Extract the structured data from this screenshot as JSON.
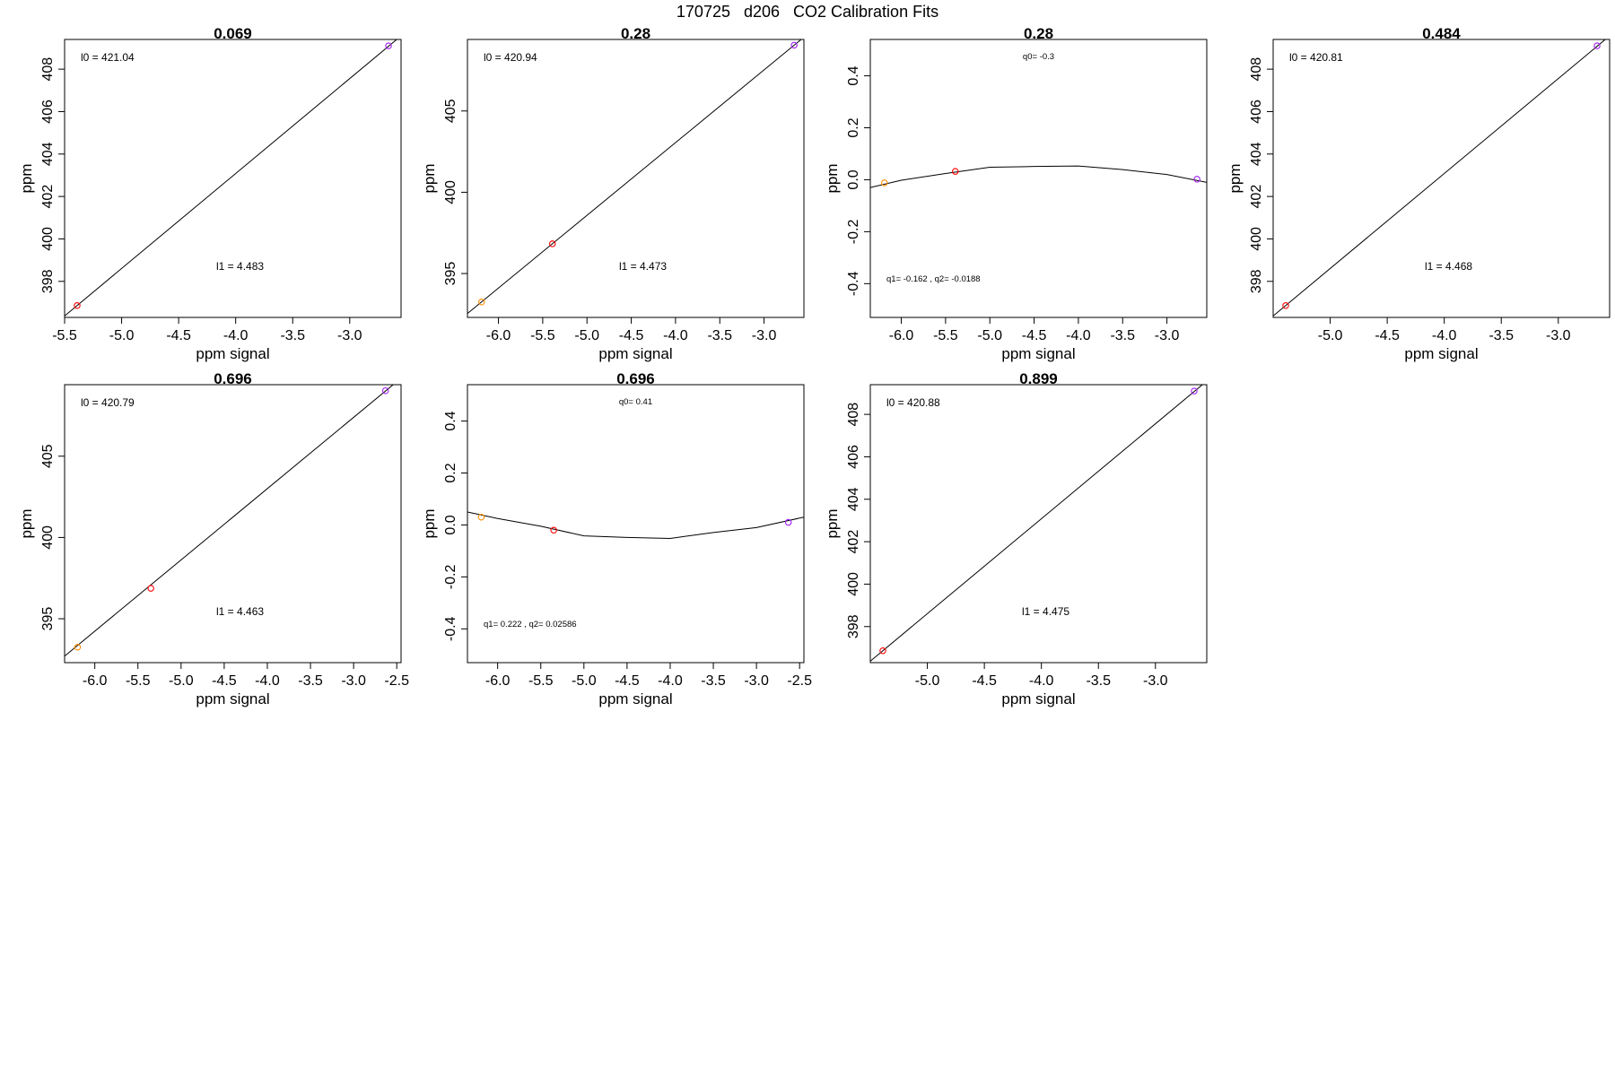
{
  "page": {
    "title": "170725   d206   CO2 Calibration Fits"
  },
  "point_colors": {
    "low_standard": "#ff8c00",
    "mid_standard": "#ff0000",
    "high_standard": "#a020f0",
    "fit_line": "#000000"
  },
  "chart_data": [
    {
      "type": "scatter",
      "title": "0.069",
      "xlabel": "ppm signal",
      "ylabel": "ppm",
      "xlim": [
        -5.5,
        -2.55
      ],
      "ylim": [
        396.3,
        409.4
      ],
      "xticks": [
        -5.5,
        -5.0,
        -4.5,
        -4.0,
        -3.5,
        -3.0
      ],
      "xtick_labels": [
        "-5.5",
        "-5.0",
        "-4.5",
        "-4.0",
        "-3.5",
        "-3.0"
      ],
      "yticks": [
        398,
        400,
        402,
        404,
        406,
        408
      ],
      "ytick_labels": [
        "398",
        "400",
        "402",
        "404",
        "406",
        "408"
      ],
      "annotations": [
        {
          "label": "l0 = ",
          "value": "421.04",
          "pos": "top-left",
          "size": "big"
        },
        {
          "label": "l1 = ",
          "value": "4.483",
          "pos": "bottom-mid",
          "size": "big"
        }
      ],
      "fit": {
        "kind": "line",
        "x": [
          -5.5,
          -2.55
        ],
        "y": [
          396.37,
          409.57
        ]
      },
      "points": [
        {
          "x": -5.39,
          "y": 396.86,
          "role": "mid_standard"
        },
        {
          "x": -2.66,
          "y": 409.1,
          "role": "high_standard"
        }
      ]
    },
    {
      "type": "scatter",
      "title": "0.28",
      "xlabel": "ppm signal",
      "ylabel": "ppm",
      "xlim": [
        -6.35,
        -2.55
      ],
      "ylim": [
        392.3,
        409.4
      ],
      "xticks": [
        -6.0,
        -5.5,
        -5.0,
        -4.5,
        -4.0,
        -3.5,
        -3.0
      ],
      "xtick_labels": [
        "-6.0",
        "-5.5",
        "-5.0",
        "-4.5",
        "-4.0",
        "-3.5",
        "-3.0"
      ],
      "yticks": [
        395,
        400,
        405
      ],
      "ytick_labels": [
        "395",
        "400",
        "405"
      ],
      "annotations": [
        {
          "label": "l0 = ",
          "value": "420.94",
          "pos": "top-left",
          "size": "big"
        },
        {
          "label": "l1 = ",
          "value": "4.473",
          "pos": "bottom-mid",
          "size": "big"
        }
      ],
      "fit": {
        "kind": "line",
        "x": [
          -6.35,
          -2.55
        ],
        "y": [
          392.54,
          409.54
        ]
      },
      "points": [
        {
          "x": -6.19,
          "y": 393.25,
          "role": "low_standard"
        },
        {
          "x": -5.39,
          "y": 396.83,
          "role": "mid_standard"
        },
        {
          "x": -2.66,
          "y": 409.05,
          "role": "high_standard"
        }
      ]
    },
    {
      "type": "scatter",
      "title": "0.28",
      "xlabel": "ppm signal",
      "ylabel": "ppm",
      "xlim": [
        -6.35,
        -2.55
      ],
      "ylim": [
        -0.53,
        0.54
      ],
      "xticks": [
        -6.0,
        -5.5,
        -5.0,
        -4.5,
        -4.0,
        -3.5,
        -3.0
      ],
      "xtick_labels": [
        "-6.0",
        "-5.5",
        "-5.0",
        "-4.5",
        "-4.0",
        "-3.5",
        "-3.0"
      ],
      "yticks": [
        -0.4,
        -0.2,
        0.0,
        0.2,
        0.4
      ],
      "ytick_labels": [
        "-0.4",
        "-0.2",
        "0.0",
        "0.2",
        "0.4"
      ],
      "annotations": [
        {
          "label": "q0= ",
          "value": "-0.3",
          "pos": "top-mid",
          "size": "small"
        },
        {
          "label": "q1= ",
          "value": "-0.162 , q2= -0.0188",
          "pos": "bottom-left",
          "size": "small"
        }
      ],
      "fit": {
        "kind": "curve",
        "x": [
          -6.35,
          -6.0,
          -5.5,
          -5.0,
          -4.5,
          -4.0,
          -3.5,
          -3.0,
          -2.55
        ],
        "y": [
          -0.03,
          -0.002,
          0.024,
          0.048,
          0.051,
          0.053,
          0.039,
          0.02,
          -0.01
        ]
      },
      "points": [
        {
          "x": -6.19,
          "y": -0.012,
          "role": "low_standard"
        },
        {
          "x": -5.39,
          "y": 0.032,
          "role": "mid_standard"
        },
        {
          "x": -2.66,
          "y": 0.002,
          "role": "high_standard"
        }
      ]
    },
    {
      "type": "scatter",
      "title": "0.484",
      "xlabel": "ppm signal",
      "ylabel": "ppm",
      "xlim": [
        -5.5,
        -2.55
      ],
      "ylim": [
        396.3,
        409.4
      ],
      "xticks": [
        -5.0,
        -4.5,
        -4.0,
        -3.5,
        -3.0
      ],
      "xtick_labels": [
        "-5.0",
        "-4.5",
        "-4.0",
        "-3.5",
        "-3.0"
      ],
      "yticks": [
        398,
        400,
        402,
        404,
        406,
        408
      ],
      "ytick_labels": [
        "398",
        "400",
        "402",
        "404",
        "406",
        "408"
      ],
      "annotations": [
        {
          "label": "l0 = ",
          "value": "420.81",
          "pos": "top-left",
          "size": "big"
        },
        {
          "label": "l1 = ",
          "value": "4.468",
          "pos": "bottom-mid",
          "size": "big"
        }
      ],
      "fit": {
        "kind": "line",
        "x": [
          -5.5,
          -2.55
        ],
        "y": [
          396.37,
          409.57
        ]
      },
      "points": [
        {
          "x": -5.39,
          "y": 396.86,
          "role": "mid_standard"
        },
        {
          "x": -2.66,
          "y": 409.1,
          "role": "high_standard"
        }
      ]
    },
    {
      "type": "scatter",
      "title": "0.696",
      "xlabel": "ppm signal",
      "ylabel": "ppm",
      "xlim": [
        -6.35,
        -2.45
      ],
      "ylim": [
        392.3,
        409.4
      ],
      "xticks": [
        -6.0,
        -5.5,
        -5.0,
        -4.5,
        -4.0,
        -3.5,
        -3.0,
        -2.5
      ],
      "xtick_labels": [
        "-6.0",
        "-5.5",
        "-5.0",
        "-4.5",
        "-4.0",
        "-3.5",
        "-3.0",
        "-2.5"
      ],
      "yticks": [
        395,
        400,
        405
      ],
      "ytick_labels": [
        "395",
        "400",
        "405"
      ],
      "annotations": [
        {
          "label": "l0 = ",
          "value": "420.79",
          "pos": "top-left",
          "size": "big"
        },
        {
          "label": "l1 = ",
          "value": "4.463",
          "pos": "bottom-mid",
          "size": "big"
        }
      ],
      "fit": {
        "kind": "line",
        "x": [
          -6.35,
          -2.45
        ],
        "y": [
          392.7,
          409.8
        ]
      },
      "points": [
        {
          "x": -6.2,
          "y": 393.25,
          "role": "low_standard"
        },
        {
          "x": -5.35,
          "y": 396.87,
          "role": "mid_standard"
        },
        {
          "x": -2.63,
          "y": 409.03,
          "role": "high_standard"
        }
      ]
    },
    {
      "type": "scatter",
      "title": "0.696",
      "xlabel": "ppm signal",
      "ylabel": "ppm",
      "xlim": [
        -6.35,
        -2.45
      ],
      "ylim": [
        -0.53,
        0.54
      ],
      "xticks": [
        -6.0,
        -5.5,
        -5.0,
        -4.5,
        -4.0,
        -3.5,
        -3.0,
        -2.5
      ],
      "xtick_labels": [
        "-6.0",
        "-5.5",
        "-5.0",
        "-4.5",
        "-4.0",
        "-3.5",
        "-3.0",
        "-2.5"
      ],
      "yticks": [
        -0.4,
        -0.2,
        0.0,
        0.2,
        0.4
      ],
      "ytick_labels": [
        "-0.4",
        "-0.2",
        "0.0",
        "0.2",
        "0.4"
      ],
      "annotations": [
        {
          "label": "q0= ",
          "value": "0.41",
          "pos": "top-mid",
          "size": "small"
        },
        {
          "label": "q1= ",
          "value": "0.222 , q2= 0.02586",
          "pos": "bottom-left",
          "size": "small"
        }
      ],
      "fit": {
        "kind": "curve",
        "x": [
          -6.35,
          -6.0,
          -5.5,
          -5.0,
          -4.5,
          -4.0,
          -3.5,
          -3.0,
          -2.45
        ],
        "y": [
          0.05,
          0.025,
          -0.005,
          -0.042,
          -0.048,
          -0.052,
          -0.029,
          -0.01,
          0.03
        ]
      },
      "points": [
        {
          "x": -6.19,
          "y": 0.03,
          "role": "low_standard"
        },
        {
          "x": -5.35,
          "y": -0.02,
          "role": "mid_standard"
        },
        {
          "x": -2.63,
          "y": 0.01,
          "role": "high_standard"
        }
      ]
    },
    {
      "type": "scatter",
      "title": "0.899",
      "xlabel": "ppm signal",
      "ylabel": "ppm",
      "xlim": [
        -5.5,
        -2.55
      ],
      "ylim": [
        396.3,
        409.4
      ],
      "xticks": [
        -5.0,
        -4.5,
        -4.0,
        -3.5,
        -3.0
      ],
      "xtick_labels": [
        "-5.0",
        "-4.5",
        "-4.0",
        "-3.5",
        "-3.0"
      ],
      "yticks": [
        398,
        400,
        402,
        404,
        406,
        408
      ],
      "ytick_labels": [
        "398",
        "400",
        "402",
        "404",
        "406",
        "408"
      ],
      "annotations": [
        {
          "label": "l0 = ",
          "value": "420.88",
          "pos": "top-left",
          "size": "big"
        },
        {
          "label": "l1 = ",
          "value": "4.475",
          "pos": "bottom-mid",
          "size": "big"
        }
      ],
      "fit": {
        "kind": "line",
        "x": [
          -5.5,
          -2.55
        ],
        "y": [
          396.37,
          409.57
        ]
      },
      "points": [
        {
          "x": -5.39,
          "y": 396.86,
          "role": "mid_standard"
        },
        {
          "x": -2.66,
          "y": 409.1,
          "role": "high_standard"
        }
      ]
    }
  ]
}
